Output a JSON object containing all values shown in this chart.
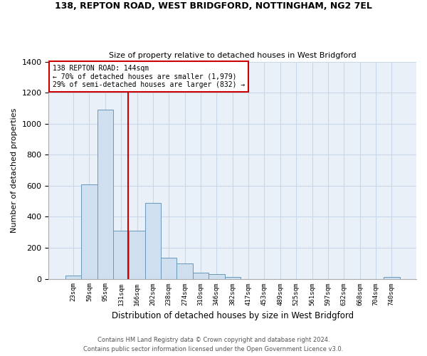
{
  "title1": "138, REPTON ROAD, WEST BRIDGFORD, NOTTINGHAM, NG2 7EL",
  "title2": "Size of property relative to detached houses in West Bridgford",
  "xlabel": "Distribution of detached houses by size in West Bridgford",
  "ylabel": "Number of detached properties",
  "footer1": "Contains HM Land Registry data © Crown copyright and database right 2024.",
  "footer2": "Contains public sector information licensed under the Open Government Licence v3.0.",
  "bin_labels": [
    "23sqm",
    "59sqm",
    "95sqm",
    "131sqm",
    "166sqm",
    "202sqm",
    "238sqm",
    "274sqm",
    "310sqm",
    "346sqm",
    "382sqm",
    "417sqm",
    "453sqm",
    "489sqm",
    "525sqm",
    "561sqm",
    "597sqm",
    "632sqm",
    "668sqm",
    "704sqm",
    "740sqm"
  ],
  "bar_heights": [
    20,
    610,
    1090,
    310,
    310,
    490,
    135,
    100,
    40,
    30,
    10,
    0,
    0,
    0,
    0,
    0,
    0,
    0,
    0,
    0,
    10
  ],
  "bar_color": "#d0dff0",
  "bar_edge_color": "#6699bb",
  "vline_position": 3.45,
  "annotation_title": "138 REPTON ROAD: 144sqm",
  "annotation_line1": "← 70% of detached houses are smaller (1,979)",
  "annotation_line2": "29% of semi-detached houses are larger (832) →",
  "annotation_box_color": "#cc0000",
  "vline_color": "#cc0000",
  "ylim": [
    0,
    1400
  ],
  "yticks": [
    0,
    200,
    400,
    600,
    800,
    1000,
    1200,
    1400
  ],
  "grid_color": "#c8d8e8",
  "background_color": "#eaf0f8"
}
